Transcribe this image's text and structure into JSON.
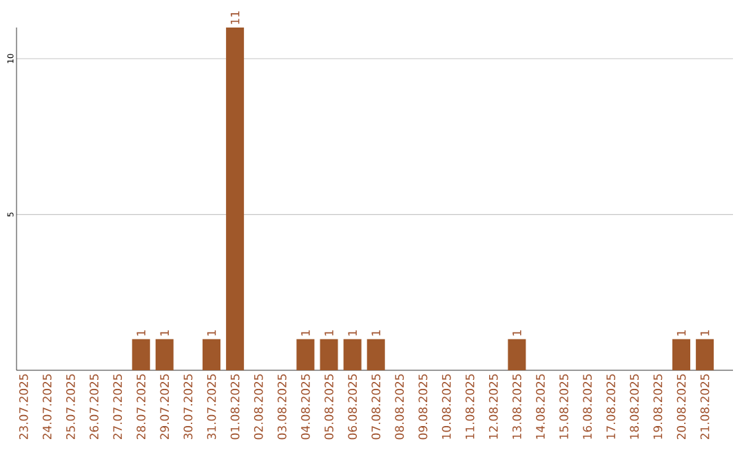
{
  "chart_data": {
    "type": "bar",
    "categories": [
      "23.07.2025",
      "24.07.2025",
      "25.07.2025",
      "26.07.2025",
      "27.07.2025",
      "28.07.2025",
      "29.07.2025",
      "30.07.2025",
      "31.07.2025",
      "01.08.2025",
      "02.08.2025",
      "03.08.2025",
      "04.08.2025",
      "05.08.2025",
      "06.08.2025",
      "07.08.2025",
      "08.08.2025",
      "09.08.2025",
      "10.08.2025",
      "11.08.2025",
      "12.08.2025",
      "13.08.2025",
      "14.08.2025",
      "15.08.2025",
      "16.08.2025",
      "17.08.2025",
      "18.08.2025",
      "19.08.2025",
      "20.08.2025",
      "21.08.2025"
    ],
    "values": [
      0,
      0,
      0,
      0,
      0,
      1,
      1,
      0,
      1,
      11,
      0,
      0,
      1,
      1,
      1,
      1,
      0,
      0,
      0,
      0,
      0,
      1,
      0,
      0,
      0,
      0,
      0,
      0,
      1,
      1
    ],
    "value_labels": [
      null,
      null,
      null,
      null,
      null,
      "1",
      "1",
      null,
      "1",
      "11",
      null,
      null,
      "1",
      "1",
      "1",
      "1",
      null,
      null,
      null,
      null,
      null,
      "1",
      null,
      null,
      null,
      null,
      null,
      null,
      "1",
      "1"
    ],
    "color": "#a0582a",
    "ylim": [
      0,
      11
    ],
    "yticks": [
      5,
      10
    ],
    "grid": "y"
  }
}
